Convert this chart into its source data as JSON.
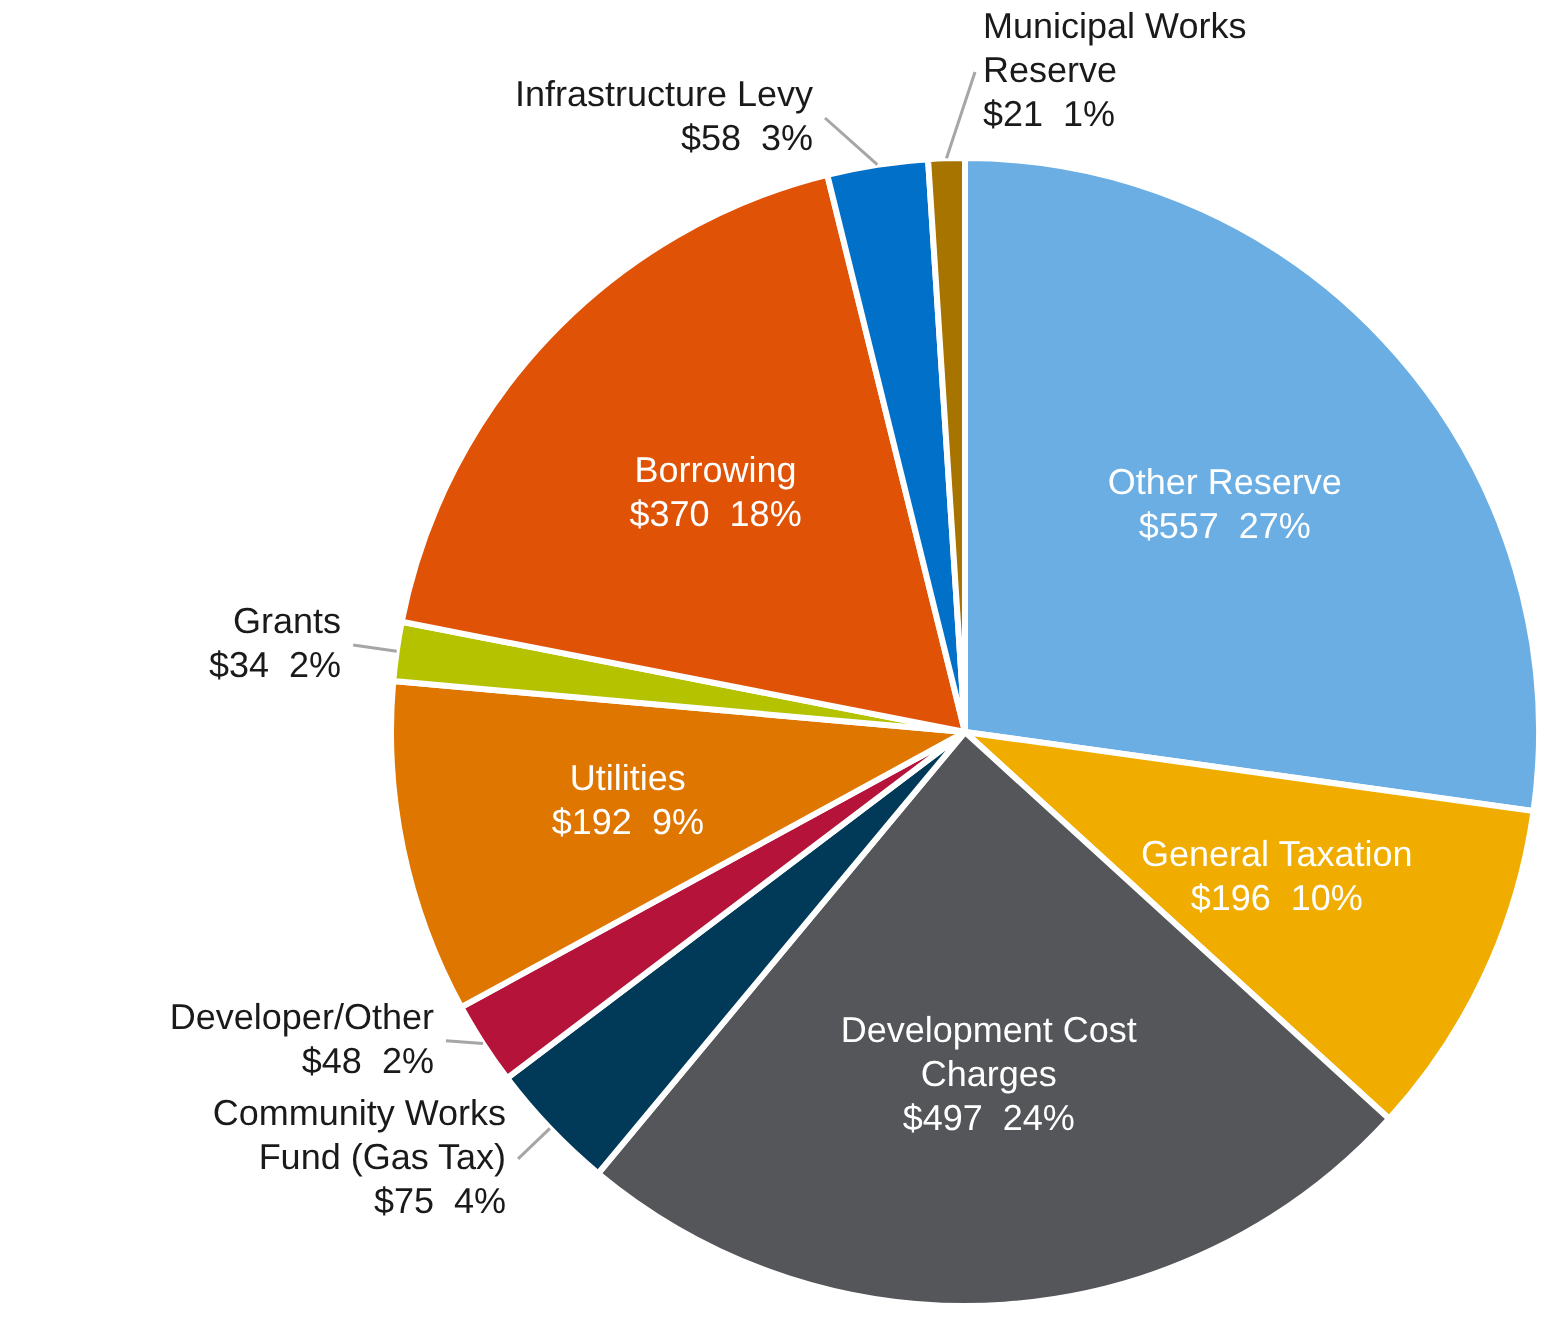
{
  "chart_data": {
    "type": "pie",
    "categories": [
      "Other Reserve",
      "General Taxation",
      "Development Cost Charges",
      "Community Works Fund (Gas Tax)",
      "Developer/Other",
      "Utilities",
      "Grants",
      "Borrowing",
      "Infrastructure Levy",
      "Municipal Works Reserve"
    ],
    "values": [
      557,
      196,
      497,
      75,
      48,
      192,
      34,
      370,
      58,
      21
    ],
    "value_labels": [
      "$557  27%",
      "$196  10%",
      "$497  24%",
      "$75  4%",
      "$48  2%",
      "$192  9%",
      "$34  2%",
      "$370  18%",
      "$58  3%",
      "$21  1%"
    ],
    "colors": [
      "#6aaee3",
      "#f0ad00",
      "#55565a",
      "#003a58",
      "#b5133a",
      "#de7600",
      "#b5c200",
      "#e05206",
      "#0070c8",
      "#a77400"
    ],
    "legend": false
  }
}
